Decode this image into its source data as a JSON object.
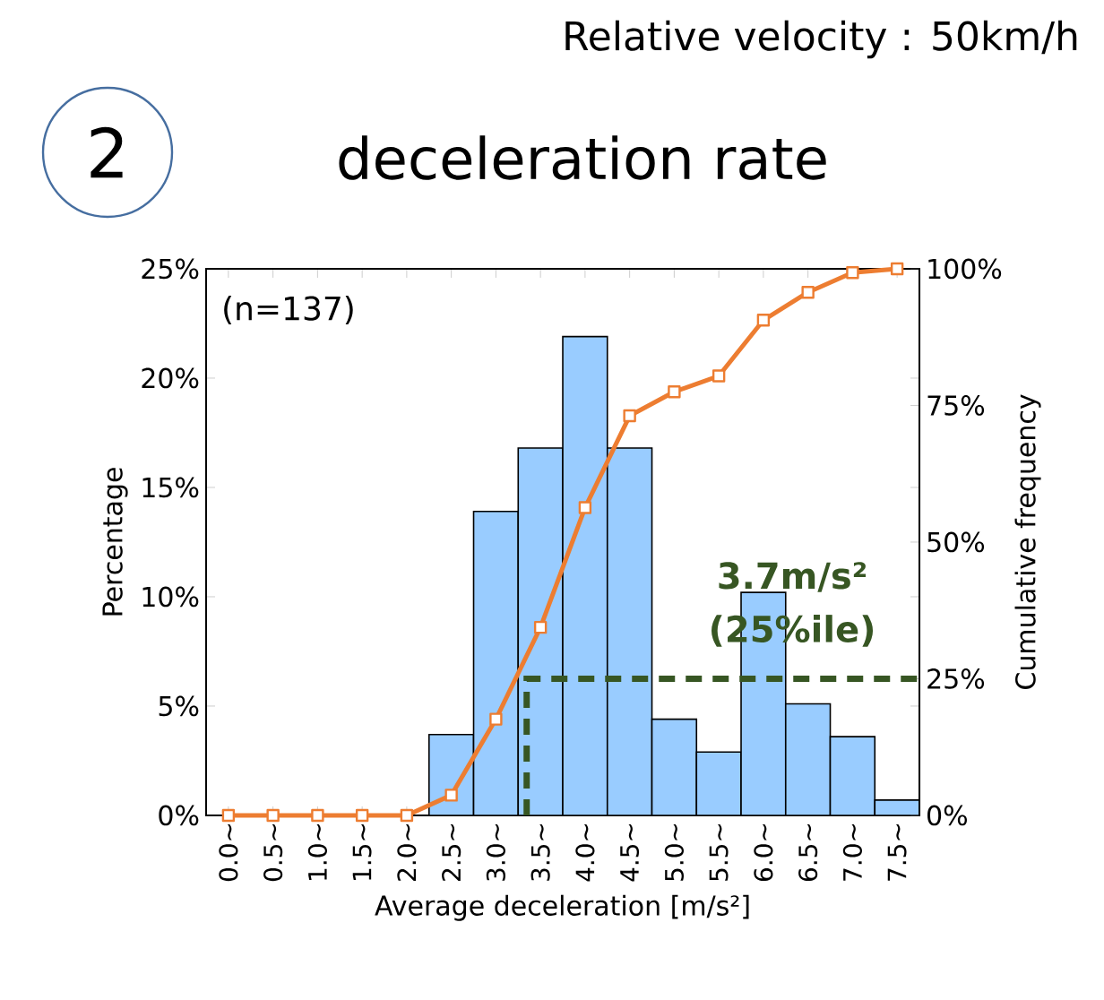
{
  "chart_data": {
    "type": "bar",
    "title": "deceleration rate",
    "xlabel": "Average deceleration [m/s²]",
    "ylabel": "Percentage",
    "y2label": "Cumulative frequency",
    "categories": [
      "0.0~",
      "0.5~",
      "1.0~",
      "1.5~",
      "2.0~",
      "2.5~",
      "3.0~",
      "3.5~",
      "4.0~",
      "4.5~",
      "5.0~",
      "5.5~",
      "6.0~",
      "6.5~",
      "7.0~",
      "7.5~"
    ],
    "series": [
      {
        "color": "#99ccff",
        "values": [
          0,
          0,
          0,
          0,
          0,
          3.7,
          13.9,
          16.8,
          21.9,
          16.8,
          4.4,
          2.9,
          10.2,
          5.1,
          3.6,
          0.7
        ]
      },
      {
        "type": "line",
        "axis": "y2",
        "color": "#ed7d31",
        "marker": "square",
        "values": [
          0,
          0,
          0,
          0,
          0,
          3.7,
          17.6,
          34.4,
          56.3,
          73.1,
          77.5,
          80.4,
          90.6,
          95.7,
          99.3,
          100
        ]
      }
    ],
    "ref_lines": [
      {
        "axis": "y2",
        "value": 25,
        "color": "#375623",
        "line_style": "dashed"
      }
    ],
    "ylim": [
      0,
      25
    ],
    "yticks": [
      {
        "value": 0,
        "label": "0%"
      },
      {
        "value": 5,
        "label": "5%"
      },
      {
        "value": 10,
        "label": "10%"
      },
      {
        "value": 15,
        "label": "15%"
      },
      {
        "value": 20,
        "label": "20%"
      },
      {
        "value": 25,
        "label": "25%"
      }
    ],
    "y2lim": [
      0,
      100
    ],
    "y2ticks": [
      {
        "value": 0,
        "label": "0%"
      },
      {
        "value": 25,
        "label": "25%"
      },
      {
        "value": 50,
        "label": "50%"
      },
      {
        "value": 75,
        "label": "75%"
      },
      {
        "value": 100,
        "label": "100%"
      }
    ],
    "annotations": [
      "Relative velocity : 50km/h",
      "2",
      "(n=137)",
      "3.7m/s²",
      "(25%ile)"
    ]
  }
}
